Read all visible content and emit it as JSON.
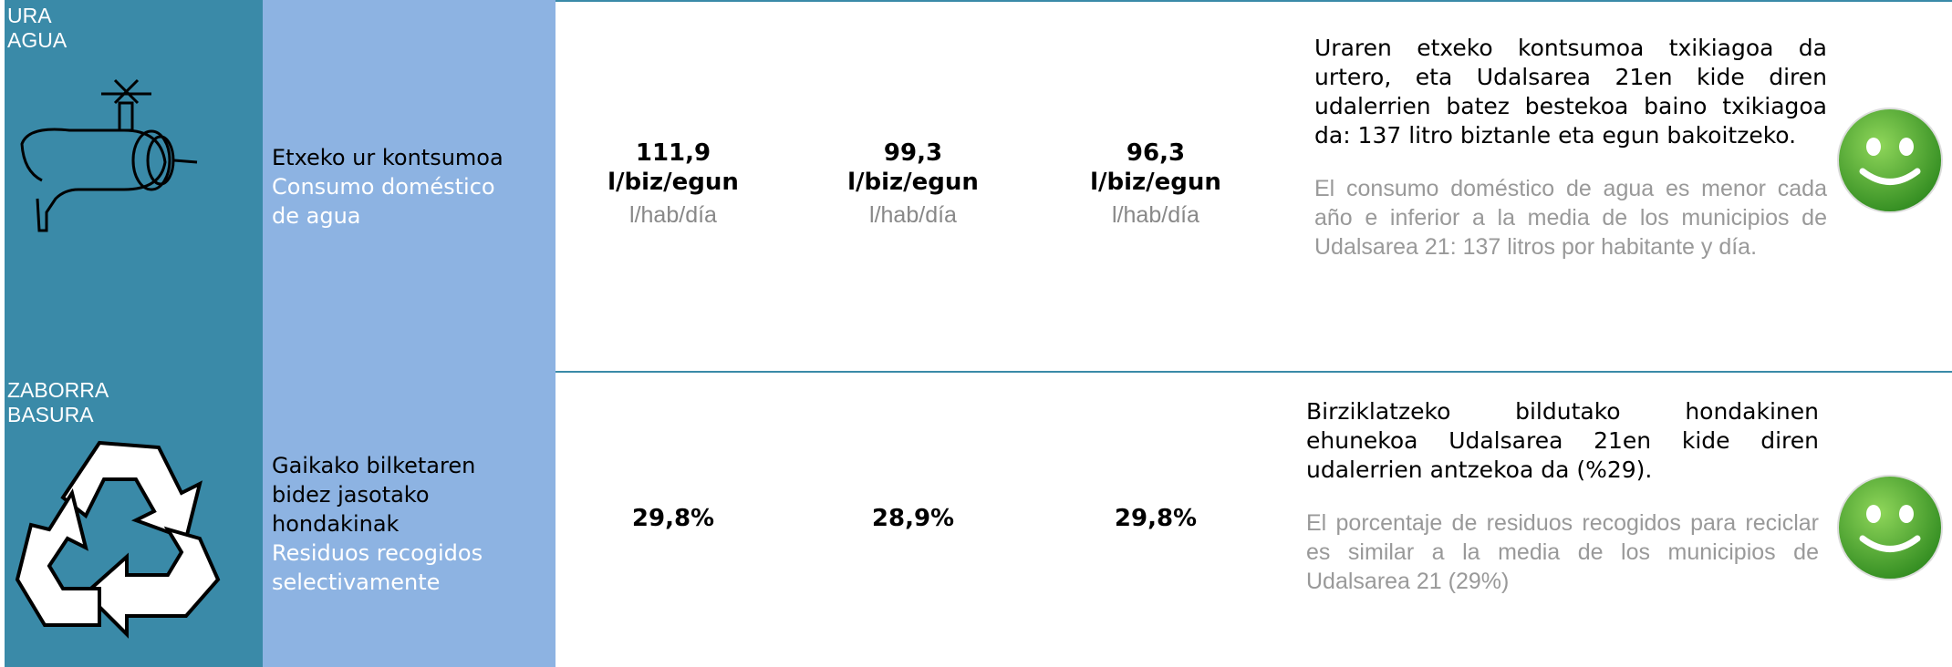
{
  "rows": [
    {
      "category": [
        "URA",
        "AGUA"
      ],
      "indicator": {
        "eu": "Etxeko ur kontsumoa",
        "es": "Consumo doméstico de agua"
      },
      "values": [
        {
          "value": "111,9",
          "unit_eu": "l/biz/egun",
          "unit_es": "l/hab/día"
        },
        {
          "value": "99,3",
          "unit_eu": "l/biz/egun",
          "unit_es": "l/hab/día"
        },
        {
          "value": "96,3",
          "unit_eu": "l/biz/egun",
          "unit_es": "l/hab/día"
        }
      ],
      "description": {
        "eu": "Uraren etxeko kontsumoa txikiagoa da urtero, eta Udalsarea 21en kide diren udalerrien batez bestekoa baino txikiagoa da: 137 litro biztanle eta egun bakoitzeko.",
        "es": "El consumo doméstico de agua es menor cada año e inferior a la media de los municipios de Udalsarea 21: 137 litros por habitante y día."
      }
    },
    {
      "category": [
        "ZABORRA",
        "BASURA"
      ],
      "indicator": {
        "eu": "Gaikako bilketaren bidez jasotako hondakinak",
        "es": "Residuos recogidos selectivamente"
      },
      "values": [
        {
          "value": "29,8%"
        },
        {
          "value": "28,9%"
        },
        {
          "value": "29,8%"
        }
      ],
      "description": {
        "eu": "Birziklatzeko bildutako hondakinen ehunekoa Udalsarea 21en kide diren udalerrien antzekoa da (%29).",
        "es": "El porcentaje de residuos recogidos para reciclar es similar a la media de los municipios de Udalsarea 21 (29%)"
      }
    }
  ]
}
